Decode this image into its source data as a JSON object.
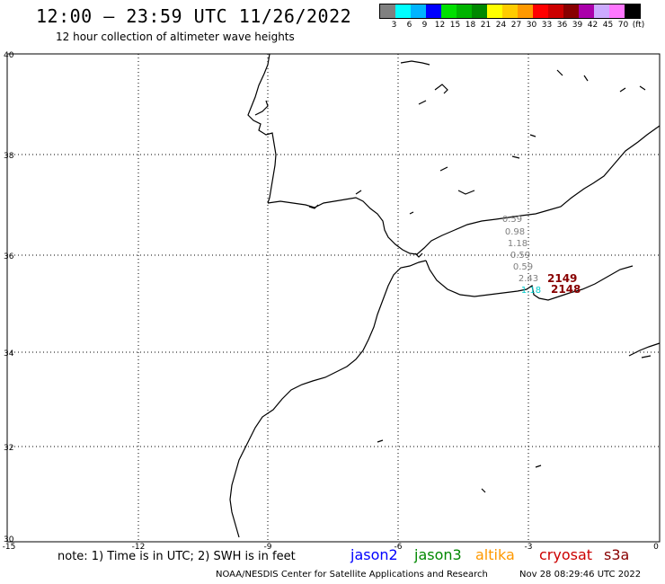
{
  "header": {
    "title": "12:00 – 23:59 UTC 11/26/2022",
    "subtitle": "12 hour collection of altimeter wave heights"
  },
  "legend": {
    "colors": [
      "#808080",
      "#00ffff",
      "#00b4ff",
      "#0000ff",
      "#00e000",
      "#00b400",
      "#008800",
      "#ffff00",
      "#ffcc00",
      "#ff9900",
      "#ff0000",
      "#cc0000",
      "#880000",
      "#aa00aa",
      "#ccaaff",
      "#ff77ff",
      "#000000"
    ],
    "labels": [
      "3",
      "6",
      "9",
      "12",
      "15",
      "18",
      "21",
      "24",
      "27",
      "30",
      "33",
      "36",
      "39",
      "42",
      "45",
      "70",
      "(ft)"
    ]
  },
  "axes": {
    "x_ticks": [
      "-15",
      "-12",
      "-9",
      "-6",
      "-3",
      "0"
    ],
    "y_ticks": [
      "40",
      "38",
      "36",
      "34",
      "32",
      "30"
    ]
  },
  "observations": {
    "values": [
      "0.59",
      "0.98",
      "1.18",
      "0.59",
      "0.59",
      "2.43",
      "1.18"
    ],
    "pass_labels": [
      "2149",
      "2148"
    ]
  },
  "footer": {
    "note": "note: 1) Time is in UTC; 2) SWH is in feet",
    "satellites": [
      {
        "name": "jason2",
        "color": "#0000ff"
      },
      {
        "name": "jason3",
        "color": "#008800"
      },
      {
        "name": "altika",
        "color": "#ff9900"
      },
      {
        "name": "cryosat",
        "color": "#cc0000"
      },
      {
        "name": "s3a",
        "color": "#880000"
      }
    ],
    "credit": "NOAA/NESDIS Center for Satellite Applications and Research",
    "timestamp": "Nov 28 08:29:46 UTC 2022"
  }
}
